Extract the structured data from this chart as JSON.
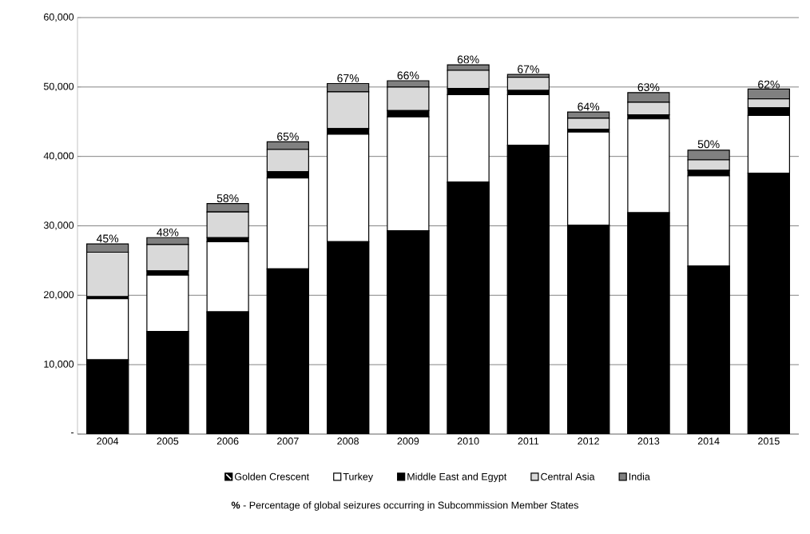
{
  "chart_data": {
    "type": "bar",
    "stacked": true,
    "categories": [
      "2004",
      "2005",
      "2006",
      "2007",
      "2008",
      "2009",
      "2010",
      "2011",
      "2012",
      "2013",
      "2014",
      "2015"
    ],
    "series": [
      {
        "name": "Golden Crescent",
        "color": "#000000",
        "values": [
          10700,
          14800,
          17600,
          23800,
          27700,
          29300,
          36300,
          41600,
          30100,
          31900,
          24200,
          37600
        ]
      },
      {
        "name": "Turkey",
        "color": "#ffffff",
        "values": [
          8800,
          8100,
          10100,
          13100,
          15500,
          16400,
          12600,
          7300,
          13400,
          13500,
          13000,
          8300
        ]
      },
      {
        "name": "Middle East and Egypt",
        "color": "#000000",
        "values": [
          300,
          600,
          600,
          900,
          800,
          900,
          900,
          600,
          400,
          600,
          800,
          1100
        ]
      },
      {
        "name": "Central Asia",
        "color": "#d9d9d9",
        "values": [
          6400,
          3800,
          3700,
          3200,
          5300,
          3400,
          2600,
          1900,
          1600,
          1800,
          1500,
          1300
        ]
      },
      {
        "name": "India",
        "color": "#808080",
        "values": [
          1200,
          1000,
          1200,
          1100,
          1200,
          900,
          800,
          400,
          900,
          1400,
          1400,
          1400
        ]
      }
    ],
    "ylim": [
      0,
      60000
    ],
    "yticks": [
      {
        "value": 0,
        "label": "-"
      },
      {
        "value": 10000,
        "label": "10,000"
      },
      {
        "value": 20000,
        "label": "20,000"
      },
      {
        "value": 30000,
        "label": "30,000"
      },
      {
        "value": 40000,
        "label": "40,000"
      },
      {
        "value": 50000,
        "label": "50,000"
      },
      {
        "value": 60000,
        "label": "60,000"
      }
    ],
    "grid": "y",
    "legend": "bottom",
    "annotations": [
      {
        "text": "45%",
        "x": "2004",
        "y": 27400
      },
      {
        "text": "48%",
        "x": "2005",
        "y": 28300
      },
      {
        "text": "58%",
        "x": "2006",
        "y": 33200
      },
      {
        "text": "65%",
        "x": "2007",
        "y": 42100
      },
      {
        "text": "67%",
        "x": "2008",
        "y": 50500
      },
      {
        "text": "66%",
        "x": "2009",
        "y": 50900
      },
      {
        "text": "68%",
        "x": "2010",
        "y": 53200
      },
      {
        "text": "67%",
        "x": "2011",
        "y": 51800
      },
      {
        "text": "64%",
        "x": "2012",
        "y": 46400
      },
      {
        "text": "63%",
        "x": "2013",
        "y": 49200
      },
      {
        "text": "50%",
        "x": "2014",
        "y": 41000
      },
      {
        "text": "62%",
        "x": "2015",
        "y": 49600
      },
      "**%** - Percentage of global seizures occurring in Subcommission Member States"
    ]
  }
}
